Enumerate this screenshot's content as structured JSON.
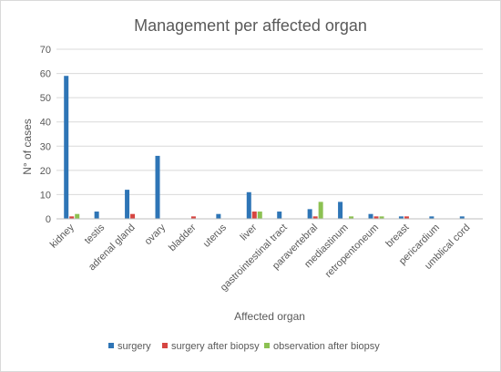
{
  "chart_data": {
    "type": "bar",
    "title": "Management per affected organ",
    "xlabel": "Affected organ",
    "ylabel": "N° of cases",
    "ylim": [
      0,
      70
    ],
    "yticks": [
      0,
      10,
      20,
      30,
      40,
      50,
      60,
      70
    ],
    "grid": true,
    "legend_position": "bottom",
    "categories": [
      "kidney",
      "testis",
      "adrenal gland",
      "ovary",
      "bladder",
      "uterus",
      "liver",
      "gastrointestinal tract",
      "paravertebral",
      "mediastinum",
      "retropentoneum",
      "breast",
      "pericardium",
      "umblical cord"
    ],
    "series": [
      {
        "name": "surgery",
        "color": "#2e75b6",
        "values": [
          59,
          3,
          12,
          26,
          0,
          2,
          11,
          3,
          4,
          7,
          2,
          1,
          1,
          1
        ]
      },
      {
        "name": "surgery after biopsy",
        "color": "#d64541",
        "values": [
          1,
          0,
          2,
          0,
          1,
          0,
          3,
          0,
          1,
          0,
          1,
          1,
          0,
          0
        ]
      },
      {
        "name": "observation after biopsy",
        "color": "#8cc152",
        "values": [
          2,
          0,
          0,
          0,
          0,
          0,
          3,
          0,
          7,
          1,
          1,
          0,
          0,
          0
        ]
      }
    ]
  }
}
